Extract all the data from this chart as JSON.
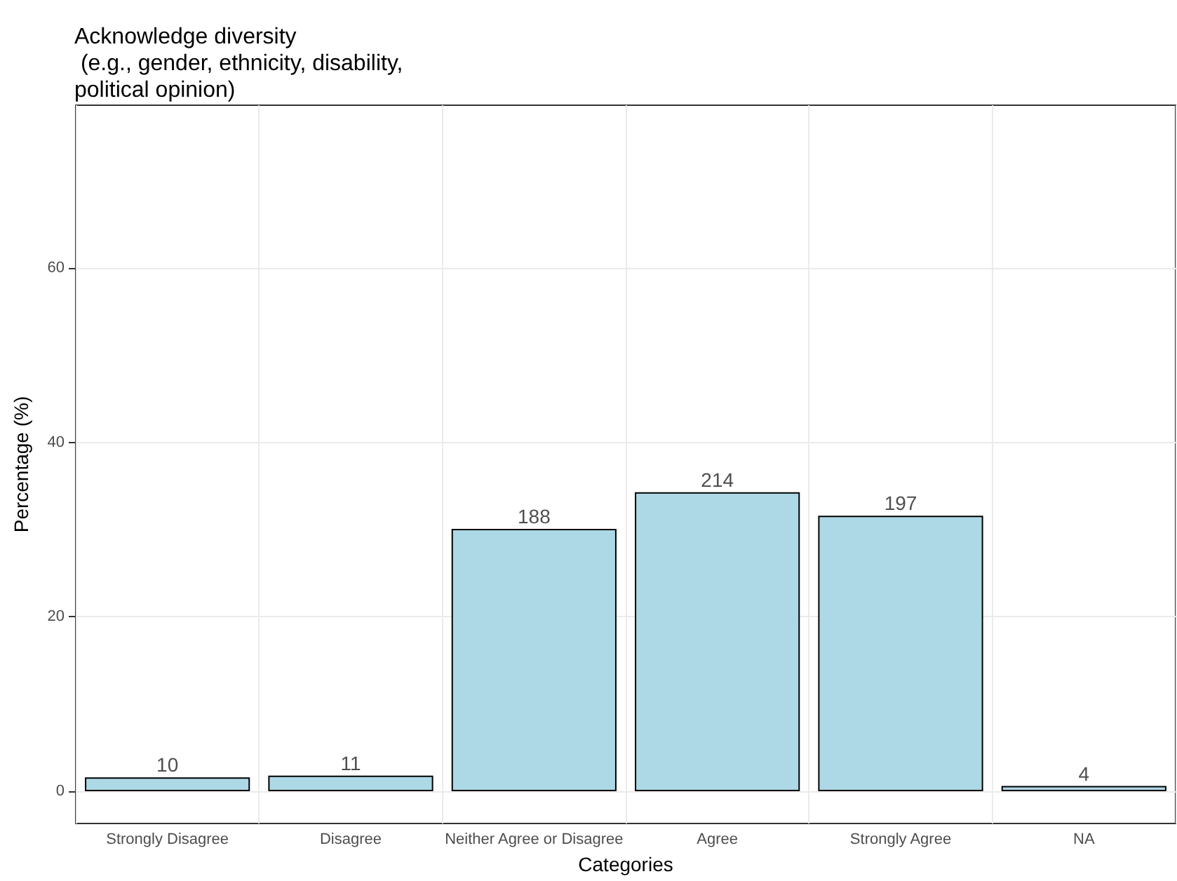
{
  "chart_data": {
    "type": "bar",
    "title": "Acknowledge diversity\n (e.g., gender, ethnicity, disability,\npolitical opinion)",
    "xlabel": "Categories",
    "ylabel": "Percentage (%)",
    "categories": [
      "Strongly Disagree",
      "Disagree",
      "Neither Agree or Disagree",
      "Agree",
      "Strongly Agree",
      "NA"
    ],
    "values": [
      1.6,
      1.8,
      30.1,
      34.3,
      31.6,
      0.6
    ],
    "annotations": [
      {
        "text": "10",
        "x": "Strongly Disagree",
        "y": 1.6
      },
      {
        "text": "11",
        "x": "Disagree",
        "y": 1.8
      },
      {
        "text": "188",
        "x": "Neither Agree or Disagree",
        "y": 30.1
      },
      {
        "text": "214",
        "x": "Agree",
        "y": 34.3
      },
      {
        "text": "197",
        "x": "Strongly Agree",
        "y": 31.6
      },
      {
        "text": "4",
        "x": "NA",
        "y": 0.6
      }
    ],
    "color": "#add8e6",
    "ylim": [
      -3.7,
      78.7
    ],
    "yticks": [
      0,
      20,
      40,
      60
    ],
    "grid": true
  }
}
